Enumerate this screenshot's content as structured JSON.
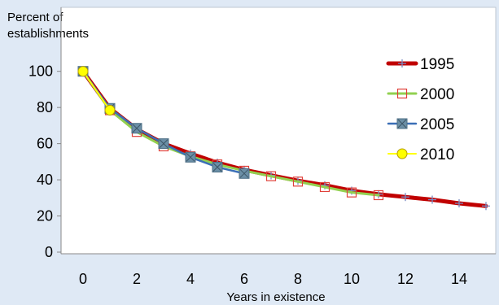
{
  "chart_data": {
    "type": "line",
    "ylabel": "Percent of\nestablishments",
    "xlabel": "Years in existence",
    "xlim": [
      -0.5,
      15
    ],
    "ylim": [
      0,
      110
    ],
    "x_ticks": [
      0,
      2,
      4,
      6,
      8,
      10,
      12,
      14
    ],
    "y_ticks": [
      0,
      20,
      40,
      60,
      80,
      100
    ],
    "grid": false,
    "legend_position": "top-right",
    "series": [
      {
        "name": "1995",
        "color": "#c00000",
        "marker": "plus",
        "x": [
          0,
          1,
          2,
          3,
          4,
          5,
          6,
          7,
          8,
          9,
          10,
          11,
          12,
          13,
          14,
          15
        ],
        "y": [
          100,
          79.5,
          68,
          60,
          54.5,
          49.5,
          45.5,
          42.5,
          39.5,
          37,
          34,
          32,
          30.5,
          29,
          27,
          25.5
        ]
      },
      {
        "name": "2000",
        "color": "#92d050",
        "marker": "open-square",
        "marker_color": "#e0403a",
        "x": [
          0,
          1,
          2,
          3,
          4,
          5,
          6,
          7,
          8,
          9,
          10,
          11
        ],
        "y": [
          100,
          78.5,
          66.5,
          58.5,
          53,
          48.5,
          45,
          42,
          39,
          36,
          33,
          31.5
        ]
      },
      {
        "name": "2005",
        "color": "#3b6fb6",
        "marker": "square-x",
        "marker_color": "#6b8fa6",
        "x": [
          0,
          1,
          2,
          3,
          4,
          5,
          6
        ],
        "y": [
          100,
          79.5,
          68.5,
          60,
          52.5,
          47,
          43.5
        ]
      },
      {
        "name": "2010",
        "color": "#ffff00",
        "marker": "circle",
        "x": [
          0,
          1
        ],
        "y": [
          100,
          78.5
        ]
      }
    ]
  },
  "colors": {
    "background": "#dfe9f5",
    "plot_area": "#ffffff",
    "axis": "#888888"
  }
}
